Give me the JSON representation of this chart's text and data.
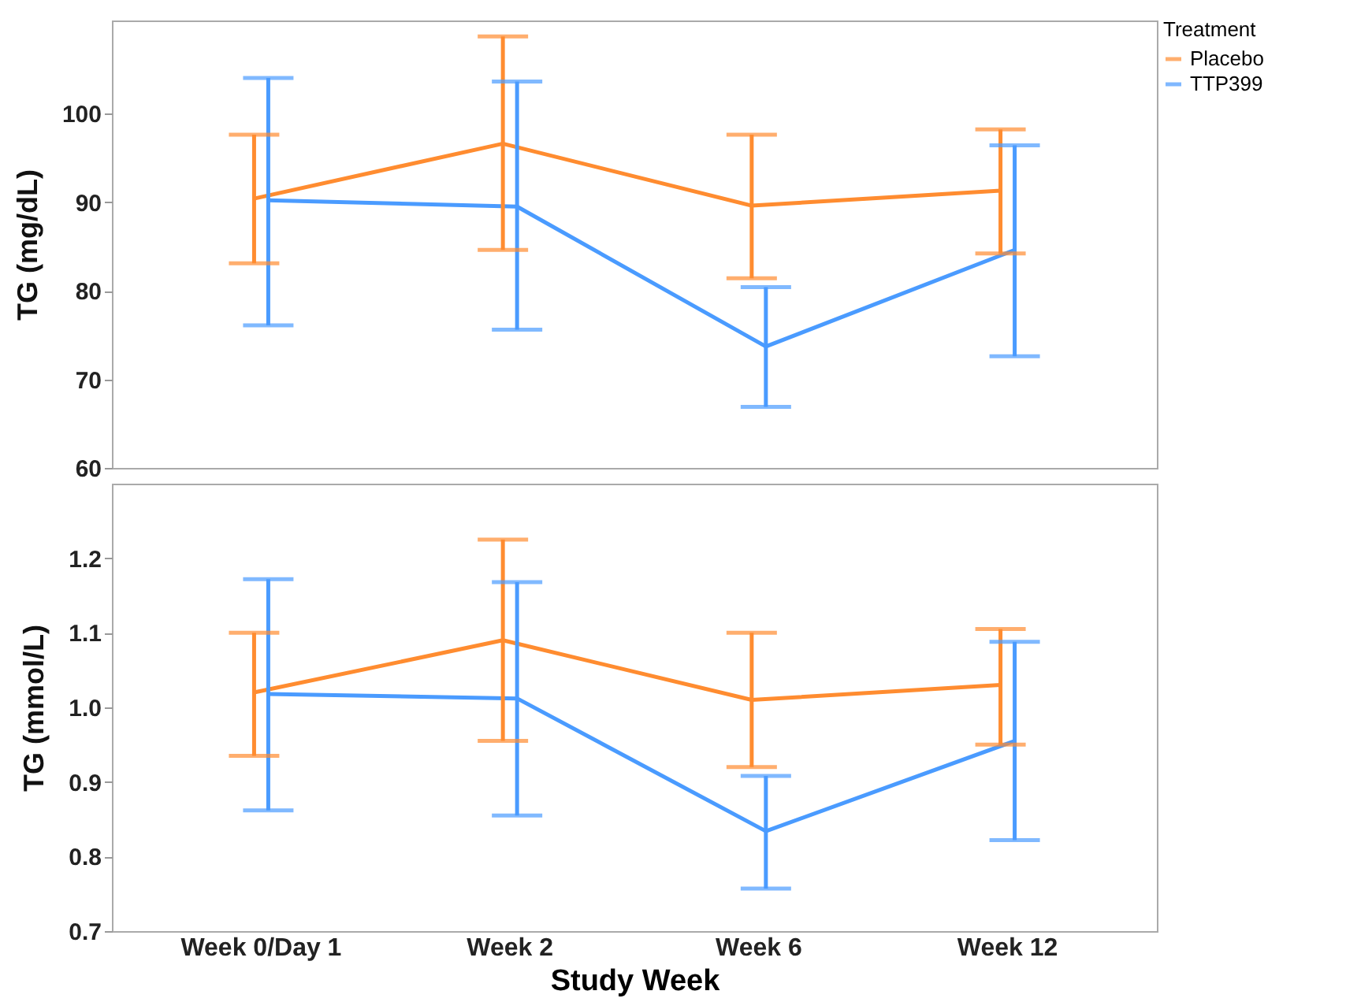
{
  "chart_data": [
    {
      "type": "line",
      "ylabel": "TG (mg/dL)",
      "legend_title": "Treatment",
      "legend": "top right",
      "tick_labels": "y",
      "categories": [
        "Week 0/Day 1",
        "Week 2",
        "Week 6",
        "Week 12"
      ],
      "ylim": [
        60,
        110.5
      ],
      "yticks": [
        60,
        70,
        80,
        90,
        100
      ],
      "series": [
        {
          "name": "Placebo",
          "color": "#ff8c30",
          "values": [
            90.4,
            96.6,
            89.6,
            91.3
          ],
          "errors": [
            [
              83.1,
              97.6
            ],
            [
              84.6,
              108.7
            ],
            [
              81.4,
              97.6
            ],
            [
              84.2,
              98.2
            ]
          ]
        },
        {
          "name": "TTP399",
          "color": "#4a9bff",
          "values": [
            90.2,
            89.5,
            73.7,
            84.6
          ],
          "errors": [
            [
              76.1,
              104
            ],
            [
              75.6,
              103.6
            ],
            [
              66.9,
              80.4
            ],
            [
              72.6,
              96.4
            ]
          ]
        }
      ]
    },
    {
      "type": "line",
      "ylabel": "TG (mmol/L)",
      "xlabel": "Study Week",
      "categories": [
        "Week 0/Day 1",
        "Week 2",
        "Week 6",
        "Week 12"
      ],
      "ylim": [
        0.7,
        1.3
      ],
      "yticks": [
        0.7,
        0.8,
        0.9,
        {
          "value": 1,
          "label": "1.0"
        },
        1.1,
        1.2
      ],
      "series": [
        {
          "color": "#ff8c30",
          "values": [
            1.02,
            1.09,
            1.01,
            1.03
          ],
          "errors": [
            [
              0.935,
              1.1
            ],
            [
              0.955,
              1.225
            ],
            [
              0.92,
              1.1
            ],
            [
              0.95,
              1.105
            ]
          ]
        },
        {
          "color": "#4a9bff",
          "values": [
            1.018,
            1.012,
            0.834,
            0.955
          ],
          "errors": [
            [
              0.862,
              1.172
            ],
            [
              0.855,
              1.168
            ],
            [
              0.757,
              0.908
            ],
            [
              0.822,
              1.088
            ]
          ]
        }
      ]
    }
  ]
}
